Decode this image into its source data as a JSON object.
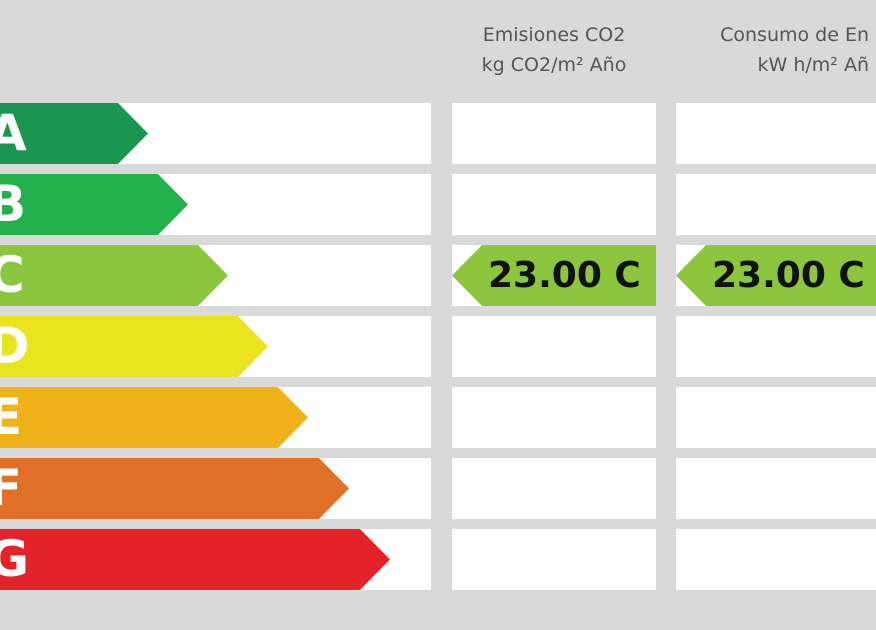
{
  "headers": {
    "co2": {
      "line1": "Emisiones CO2",
      "line2": "kg CO2/m² Año"
    },
    "energy": {
      "line1": "Consumo de En",
      "line2": "kW h/m² Añ"
    }
  },
  "bands": [
    {
      "letter": "A",
      "color": "#1b9651"
    },
    {
      "letter": "B",
      "color": "#22b14c"
    },
    {
      "letter": "C",
      "color": "#8cc63f"
    },
    {
      "letter": "D",
      "color": "#e9e41f"
    },
    {
      "letter": "E",
      "color": "#f0b21a"
    },
    {
      "letter": "F",
      "color": "#e06f27"
    },
    {
      "letter": "G",
      "color": "#e2232a"
    }
  ],
  "ratings": {
    "co2": {
      "text": "23.00 C",
      "color": "#8cc63f"
    },
    "energy": {
      "text": "23.00 C",
      "color": "#8cc63f"
    }
  }
}
